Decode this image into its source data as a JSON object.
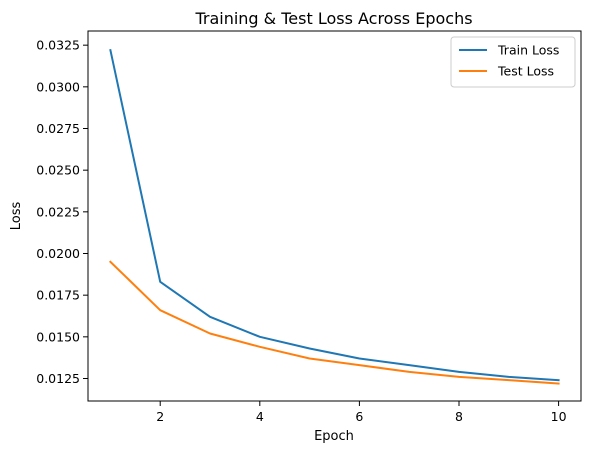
{
  "chart_data": {
    "type": "line",
    "title": "Training & Test Loss Across Epochs",
    "xlabel": "Epoch",
    "ylabel": "Loss",
    "x": [
      1,
      2,
      3,
      4,
      5,
      6,
      7,
      8,
      9,
      10
    ],
    "xlim": [
      0.55,
      10.45
    ],
    "ylim": [
      0.01115,
      0.03335
    ],
    "xticks": [
      2,
      4,
      6,
      8,
      10
    ],
    "xtick_labels": [
      "2",
      "4",
      "6",
      "8",
      "10"
    ],
    "yticks": [
      0.0125,
      0.015,
      0.0175,
      0.02,
      0.0225,
      0.025,
      0.0275,
      0.03,
      0.0325
    ],
    "ytick_labels": [
      "0.0125",
      "0.0150",
      "0.0175",
      "0.0200",
      "0.0225",
      "0.0250",
      "0.0275",
      "0.0300",
      "0.0325"
    ],
    "grid": false,
    "legend_position": "top-right",
    "series": [
      {
        "name": "Train Loss",
        "color": "#1f77b4",
        "values": [
          0.0322,
          0.0183,
          0.0162,
          0.015,
          0.0143,
          0.0137,
          0.0133,
          0.0129,
          0.0126,
          0.0124
        ]
      },
      {
        "name": "Test Loss",
        "color": "#ff7f0e",
        "values": [
          0.0195,
          0.0166,
          0.0152,
          0.0144,
          0.0137,
          0.0133,
          0.0129,
          0.0126,
          0.0124,
          0.0122
        ]
      }
    ]
  }
}
